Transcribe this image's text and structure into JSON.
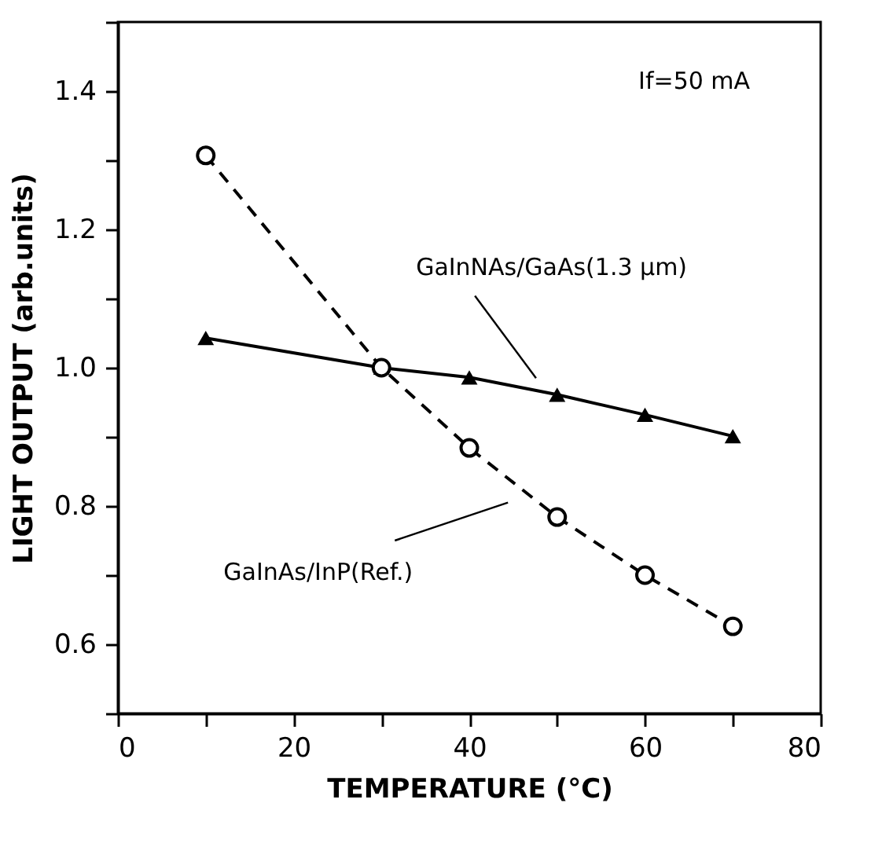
{
  "chart_data": {
    "type": "line",
    "xlabel": "TEMPERATURE (°C)",
    "ylabel": "LIGHT OUTPUT (arb.units)",
    "x": [
      10,
      30,
      40,
      50,
      60,
      70
    ],
    "series": [
      {
        "color": "#000000",
        "marker": "triangle",
        "line_style": "solid",
        "values": [
          1.043,
          1.0,
          0.986,
          0.961,
          0.932,
          0.901
        ]
      },
      {
        "color": "#000000",
        "marker": "circle",
        "line_style": "dashed",
        "values": [
          1.307,
          1.0,
          0.884,
          0.784,
          0.7,
          0.626
        ]
      }
    ],
    "xlim": [
      0,
      80
    ],
    "xticks": [
      0,
      {
        "value": 10,
        "label": null
      },
      20,
      {
        "value": 30,
        "label": null
      },
      40,
      {
        "value": 50,
        "label": null
      },
      60,
      {
        "value": 70,
        "label": null
      },
      80
    ],
    "ylim": [
      0.5,
      1.5
    ],
    "yticks": [
      {
        "value": 0.5,
        "label": null
      },
      0.6,
      {
        "value": 0.7,
        "label": null
      },
      0.8,
      {
        "value": 0.9,
        "label": null
      },
      {
        "value": 1,
        "label": "1.0"
      },
      {
        "value": 1.1,
        "label": null
      },
      1.2,
      {
        "value": 1.3,
        "label": null
      },
      1.4,
      {
        "value": 1.5,
        "label": null
      }
    ],
    "grid": false,
    "annotations": [
      "If=50 mA",
      "GaInNAs/GaAs(1.3 µm)",
      "GaInAs/InP(Ref.)"
    ]
  }
}
